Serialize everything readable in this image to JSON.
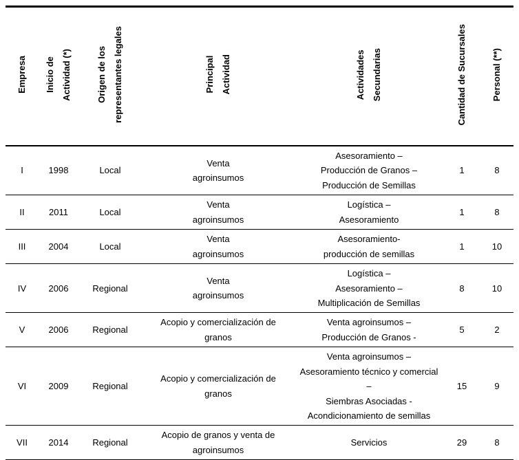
{
  "table": {
    "headers": [
      "Empresa",
      "Inicio de\nActividad (*)",
      "Origen de los\nrepresentantes legales",
      "Principal\nActividad",
      "Actividades\nSecundarias",
      "Cantidad de Sucursales",
      "Personal (**)"
    ],
    "rows": [
      [
        "I",
        "1998",
        "Local",
        "Venta\nagroinsumos",
        "Asesoramiento –\nProducción de Granos –\nProducción de Semillas",
        "1",
        "8"
      ],
      [
        "II",
        "2011",
        "Local",
        "Venta\nagroinsumos",
        "Logística –\nAsesoramiento",
        "1",
        "8"
      ],
      [
        "III",
        "2004",
        "Local",
        "Venta\nagroinsumos",
        "Asesoramiento-\nproducción de semillas",
        "1",
        "10"
      ],
      [
        "IV",
        "2006",
        "Regional",
        "Venta\nagroinsumos",
        "Logística –\nAsesoramiento –\nMultiplicación de Semillas",
        "8",
        "10"
      ],
      [
        "V",
        "2006",
        "Regional",
        "Acopio y comercialización de\ngranos",
        "Venta agroinsumos –\nProducción de Granos -",
        "5",
        "2"
      ],
      [
        "VI",
        "2009",
        "Regional",
        "Acopio y comercialización de\ngranos",
        "Venta agroinsumos –\nAsesoramiento técnico y comercial –\nSiembras Asociadas -\nAcondicionamiento de semillas",
        "15",
        "9"
      ],
      [
        "VII",
        "2014",
        "Regional",
        "Acopio de granos y venta de\nagroinsumos",
        "Servicios",
        "29",
        "8"
      ]
    ]
  }
}
